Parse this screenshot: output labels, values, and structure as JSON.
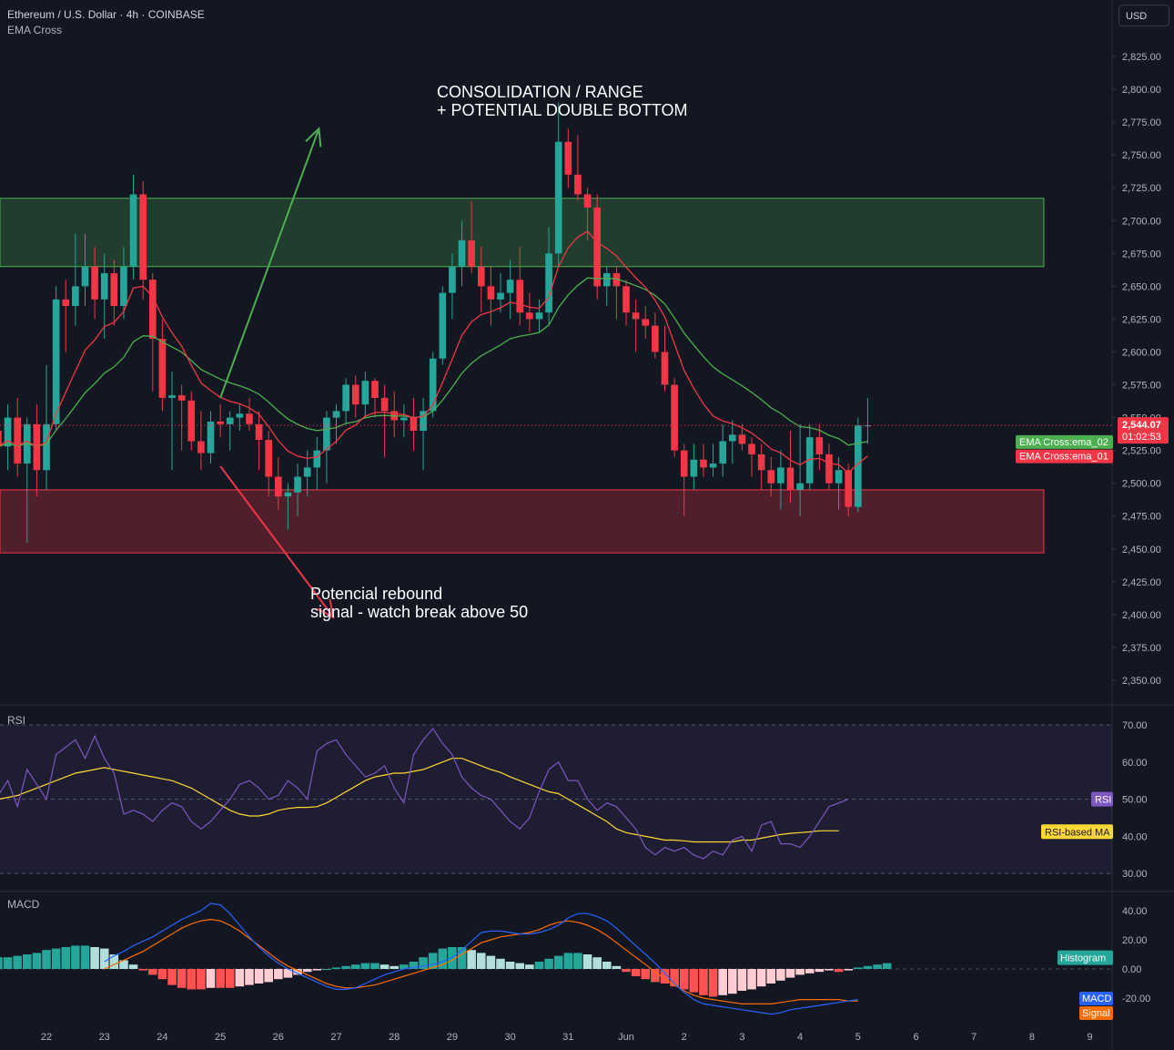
{
  "header": {
    "symbol": "Ethereum / U.S. Dollar · 4h · COINBASE",
    "indicator": "EMA Cross",
    "currency_button": "USD"
  },
  "annotations": {
    "top_line1": "CONSOLIDATION / RANGE",
    "top_line2": "+ POTENTIAL DOUBLE BOTTOM",
    "bottom_line1": "Potencial rebound",
    "bottom_line2": "signal - watch break above 50"
  },
  "panes": {
    "rsi_label": "RSI",
    "macd_label": "MACD"
  },
  "colors": {
    "background": "#131722",
    "up": "#26a69a",
    "down": "#f23645",
    "ema_fast": "#f23645",
    "ema_slow": "#4caf50",
    "rsi": "#7e57c2",
    "rsi_ma": "#fdd835",
    "macd": "#2962ff",
    "signal": "#ff6d00",
    "resistance_zone": "#4caf50",
    "support_zone": "#f23645"
  },
  "chart_data": [
    {
      "type": "candlestick",
      "title": "Ethereum / U.S. Dollar · 4h · COINBASE",
      "price_axis": {
        "range": [
          2325,
          2850
        ],
        "ticks": [
          "2,825.00",
          "2,800.00",
          "2,775.00",
          "2,750.00",
          "2,725.00",
          "2,700.00",
          "2,675.00",
          "2,650.00",
          "2,625.00",
          "2,600.00",
          "2,575.00",
          "2,550.00",
          "2,525.00",
          "2,500.00",
          "2,475.00",
          "2,450.00",
          "2,425.00",
          "2,400.00",
          "2,375.00",
          "2,350.00"
        ]
      },
      "time_axis": {
        "labels": [
          "22",
          "23",
          "24",
          "25",
          "26",
          "27",
          "28",
          "29",
          "30",
          "31",
          "Jun",
          "2",
          "3",
          "4",
          "5",
          "6",
          "7",
          "8",
          "9"
        ],
        "bars_per_day": 6,
        "first_bar_day_offset": -0.833
      },
      "current_price": {
        "value": 2544.07,
        "label": "2,544.07",
        "countdown": "01:02:53"
      },
      "ohlc": [
        [
          2540,
          2555,
          2520,
          2528
        ],
        [
          2528,
          2560,
          2510,
          2550
        ],
        [
          2550,
          2565,
          2505,
          2515
        ],
        [
          2515,
          2550,
          2455,
          2545
        ],
        [
          2545,
          2560,
          2490,
          2510
        ],
        [
          2510,
          2590,
          2495,
          2545
        ],
        [
          2545,
          2650,
          2540,
          2640
        ],
        [
          2640,
          2655,
          2600,
          2635
        ],
        [
          2635,
          2690,
          2620,
          2650
        ],
        [
          2650,
          2690,
          2635,
          2665
        ],
        [
          2665,
          2680,
          2625,
          2640
        ],
        [
          2640,
          2675,
          2610,
          2660
        ],
        [
          2660,
          2670,
          2620,
          2635
        ],
        [
          2635,
          2680,
          2625,
          2665
        ],
        [
          2665,
          2735,
          2655,
          2720
        ],
        [
          2720,
          2730,
          2640,
          2655
        ],
        [
          2655,
          2660,
          2570,
          2610
        ],
        [
          2610,
          2625,
          2555,
          2565
        ],
        [
          2565,
          2585,
          2510,
          2567
        ],
        [
          2567,
          2575,
          2525,
          2563
        ],
        [
          2563,
          2570,
          2525,
          2532
        ],
        [
          2532,
          2555,
          2510,
          2523
        ],
        [
          2523,
          2555,
          2515,
          2547
        ],
        [
          2547,
          2560,
          2535,
          2545
        ],
        [
          2545,
          2555,
          2525,
          2550
        ],
        [
          2550,
          2560,
          2540,
          2553
        ],
        [
          2553,
          2565,
          2540,
          2545
        ],
        [
          2545,
          2555,
          2510,
          2533
        ],
        [
          2533,
          2540,
          2490,
          2505
        ],
        [
          2505,
          2520,
          2480,
          2490
        ],
        [
          2490,
          2500,
          2465,
          2493
        ],
        [
          2493,
          2515,
          2475,
          2505
        ],
        [
          2505,
          2525,
          2490,
          2512
        ],
        [
          2512,
          2535,
          2495,
          2525
        ],
        [
          2525,
          2555,
          2500,
          2550
        ],
        [
          2550,
          2560,
          2530,
          2555
        ],
        [
          2555,
          2580,
          2545,
          2575
        ],
        [
          2575,
          2582,
          2550,
          2560
        ],
        [
          2560,
          2585,
          2550,
          2578
        ],
        [
          2578,
          2580,
          2550,
          2565
        ],
        [
          2565,
          2575,
          2520,
          2555
        ],
        [
          2555,
          2570,
          2535,
          2548
        ],
        [
          2548,
          2560,
          2535,
          2550
        ],
        [
          2550,
          2565,
          2525,
          2540
        ],
        [
          2540,
          2565,
          2510,
          2555
        ],
        [
          2555,
          2600,
          2550,
          2595
        ],
        [
          2595,
          2650,
          2590,
          2645
        ],
        [
          2645,
          2675,
          2625,
          2665
        ],
        [
          2665,
          2700,
          2650,
          2685
        ],
        [
          2685,
          2715,
          2660,
          2665
        ],
        [
          2665,
          2680,
          2630,
          2650
        ],
        [
          2650,
          2665,
          2620,
          2640
        ],
        [
          2640,
          2660,
          2630,
          2645
        ],
        [
          2645,
          2670,
          2625,
          2655
        ],
        [
          2655,
          2680,
          2620,
          2630
        ],
        [
          2630,
          2645,
          2615,
          2625
        ],
        [
          2625,
          2640,
          2615,
          2630
        ],
        [
          2630,
          2695,
          2620,
          2675
        ],
        [
          2675,
          2790,
          2665,
          2760
        ],
        [
          2760,
          2770,
          2725,
          2735
        ],
        [
          2735,
          2765,
          2715,
          2720
        ],
        [
          2720,
          2725,
          2685,
          2710
        ],
        [
          2710,
          2720,
          2640,
          2650
        ],
        [
          2650,
          2665,
          2635,
          2660
        ],
        [
          2660,
          2665,
          2625,
          2650
        ],
        [
          2650,
          2655,
          2620,
          2630
        ],
        [
          2630,
          2640,
          2600,
          2625
        ],
        [
          2625,
          2635,
          2610,
          2620
        ],
        [
          2620,
          2630,
          2595,
          2600
        ],
        [
          2600,
          2620,
          2570,
          2575
        ],
        [
          2575,
          2580,
          2520,
          2525
        ],
        [
          2525,
          2530,
          2475,
          2505
        ],
        [
          2505,
          2530,
          2495,
          2518
        ],
        [
          2518,
          2530,
          2505,
          2512
        ],
        [
          2512,
          2530,
          2505,
          2515
        ],
        [
          2515,
          2545,
          2505,
          2532
        ],
        [
          2532,
          2548,
          2515,
          2537
        ],
        [
          2537,
          2545,
          2525,
          2530
        ],
        [
          2530,
          2535,
          2505,
          2522
        ],
        [
          2522,
          2530,
          2495,
          2510
        ],
        [
          2510,
          2520,
          2490,
          2500
        ],
        [
          2500,
          2525,
          2480,
          2512
        ],
        [
          2512,
          2540,
          2485,
          2495
        ],
        [
          2495,
          2545,
          2475,
          2500
        ],
        [
          2500,
          2545,
          2495,
          2535
        ],
        [
          2535,
          2545,
          2510,
          2522
        ],
        [
          2522,
          2530,
          2495,
          2500
        ],
        [
          2500,
          2520,
          2480,
          2510
        ],
        [
          2510,
          2515,
          2475,
          2482
        ],
        [
          2482,
          2550,
          2478,
          2544
        ],
        [
          2544,
          2565,
          2530,
          2544.07
        ]
      ],
      "series": [
        {
          "name": "EMA Cross:ema_02",
          "color": "#4caf50"
        },
        {
          "name": "EMA Cross:ema_01",
          "color": "#f23645"
        }
      ],
      "zones": [
        {
          "kind": "resistance",
          "from": 2665,
          "to": 2717
        },
        {
          "kind": "support",
          "from": 2447,
          "to": 2495
        }
      ],
      "projections": [
        {
          "direction": "up",
          "from_day": 3.0,
          "from_price": 2565,
          "to_day": 4.7,
          "to_price": 2770
        },
        {
          "direction": "down",
          "from_day": 3.0,
          "from_price": 2513,
          "to_day": 4.95,
          "to_price": 2398
        }
      ]
    },
    {
      "type": "line",
      "title": "RSI",
      "y_range": [
        28,
        72
      ],
      "ticks": [
        "70.00",
        "60.00",
        "50.00",
        "40.00",
        "30.00"
      ],
      "bands": [
        30,
        50,
        70
      ],
      "series": [
        {
          "name": "RSI",
          "color": "#7e57c2",
          "values": [
            51,
            55,
            48,
            58,
            54,
            50,
            62,
            64,
            66,
            61,
            67,
            61,
            57,
            46,
            47,
            46,
            44,
            47,
            49,
            48,
            44,
            42,
            44,
            47,
            50,
            54,
            55,
            53,
            50,
            51,
            55,
            53,
            50,
            63,
            65,
            66,
            62,
            59,
            56,
            57,
            59,
            53,
            49,
            62,
            66,
            69,
            65,
            62,
            56,
            53,
            51,
            50,
            47,
            44,
            42,
            45,
            52,
            58,
            60,
            55,
            55,
            50,
            47,
            49,
            48,
            45,
            42,
            37,
            35,
            37,
            36,
            37,
            35,
            34,
            36,
            35,
            39,
            40,
            36,
            43,
            44,
            38,
            38,
            37,
            40,
            44,
            48,
            49,
            50
          ]
        },
        {
          "name": "RSI-based MA",
          "color": "#fdd835",
          "values": [
            50,
            50.5,
            51,
            52,
            53,
            54,
            55,
            56,
            57,
            57.5,
            58,
            58.5,
            58,
            57.5,
            57,
            56.5,
            56,
            55.5,
            55,
            54,
            53,
            51.5,
            50,
            48.5,
            47,
            46,
            45.5,
            45.5,
            46,
            47,
            47.5,
            47.8,
            47.8,
            48,
            49,
            50.5,
            52,
            53.5,
            55,
            56,
            56.5,
            57,
            57,
            57.5,
            58,
            59,
            60,
            61,
            61,
            60,
            59,
            58,
            57.2,
            56,
            55,
            54,
            53,
            52,
            51.5,
            50,
            48.5,
            47,
            45.5,
            44,
            42,
            41,
            40.5,
            40,
            39.5,
            39,
            39,
            38.8,
            38.5,
            38.5,
            38.5,
            38.5,
            38.5,
            39,
            39,
            39.5,
            40,
            40.5,
            40.8,
            41,
            41.2,
            41.5,
            41.5,
            41.5
          ]
        }
      ]
    },
    {
      "type": "bar",
      "title": "MACD",
      "y_range": [
        -28,
        48
      ],
      "ticks": [
        "40.00",
        "20.00",
        "0.00",
        "-20.00"
      ],
      "series": [
        {
          "name": "Histogram",
          "color": "#26a69a",
          "values": [
            8,
            8,
            9,
            10,
            11,
            13,
            14,
            15,
            16,
            16,
            15,
            14,
            10,
            6,
            3,
            -1,
            -4,
            -7,
            -11,
            -13,
            -14,
            -14,
            -13,
            -13,
            -13,
            -12,
            -11,
            -10,
            -9,
            -7,
            -6,
            -4,
            -2,
            -1,
            0,
            1,
            2,
            3,
            4,
            4,
            3,
            2,
            3,
            5,
            8,
            11,
            14,
            15,
            15,
            13,
            11,
            9,
            7,
            5,
            4,
            3,
            5,
            7,
            9,
            11,
            11,
            10,
            8,
            5,
            2,
            -2,
            -5,
            -7,
            -9,
            -10,
            -12,
            -14,
            -16,
            -18,
            -19,
            -18,
            -17,
            -15,
            -14,
            -12,
            -10,
            -8,
            -6,
            -4,
            -3,
            -2,
            -1,
            -2,
            -1,
            1,
            2,
            3,
            4
          ]
        },
        {
          "name": "MACD",
          "color": "#2962ff",
          "values": [
            5,
            9,
            12,
            16,
            19,
            22,
            26,
            30,
            34,
            37,
            40,
            45,
            44,
            38,
            30,
            22,
            15,
            9,
            4,
            0,
            -3,
            -6,
            -9,
            -12,
            -14,
            -14,
            -13,
            -10,
            -7,
            -4,
            -2,
            0,
            1,
            2,
            3,
            5,
            8,
            13,
            19,
            25,
            26,
            26,
            25,
            24,
            24,
            25,
            27,
            30,
            35,
            38,
            38,
            36,
            33,
            28,
            22,
            16,
            10,
            4,
            -3,
            -10,
            -16,
            -21,
            -24,
            -25,
            -26,
            -27,
            -28,
            -29,
            -30,
            -31,
            -30,
            -28,
            -27,
            -26,
            -25,
            -24,
            -23,
            -22,
            -21
          ]
        },
        {
          "name": "Signal",
          "color": "#ff6d00",
          "values": [
            0,
            3,
            6,
            9,
            12,
            16,
            20,
            24,
            28,
            31,
            33,
            34,
            33,
            30,
            26,
            21,
            16,
            11,
            6,
            2,
            -1,
            -4,
            -7,
            -10,
            -12,
            -13,
            -13,
            -12,
            -11,
            -9,
            -7,
            -5,
            -3,
            -1,
            1,
            3,
            6,
            10,
            14,
            18,
            20,
            22,
            23,
            24,
            25,
            27,
            30,
            32,
            33,
            32,
            30,
            27,
            23,
            18,
            13,
            8,
            3,
            -2,
            -7,
            -11,
            -15,
            -18,
            -20,
            -21,
            -22,
            -23,
            -24,
            -24,
            -24,
            -24,
            -23,
            -22,
            -21,
            -21,
            -21,
            -21,
            -21,
            -22,
            -22
          ]
        }
      ]
    }
  ]
}
